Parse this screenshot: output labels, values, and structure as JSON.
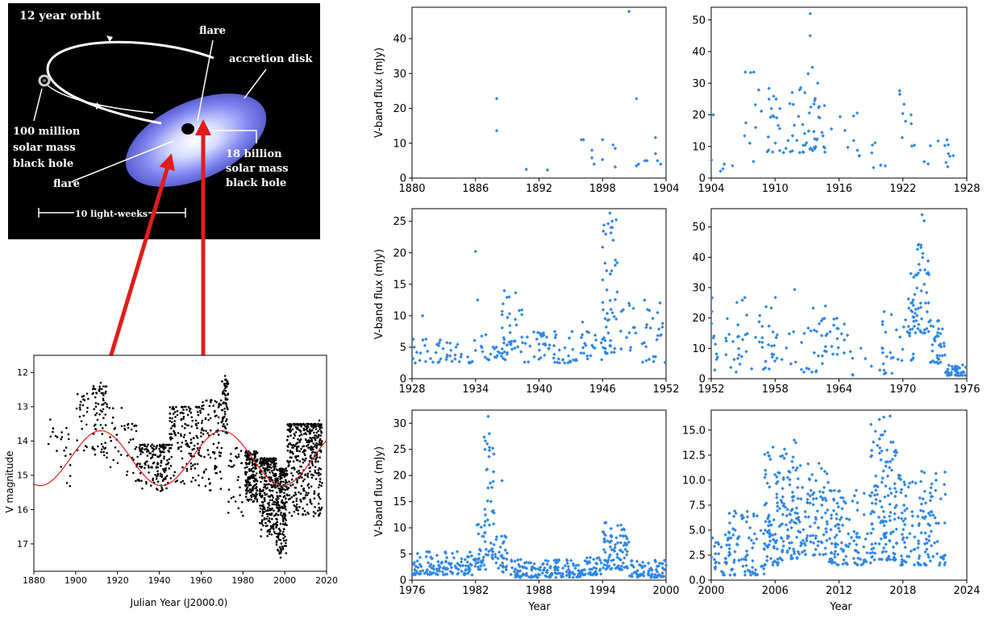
{
  "illustration": {
    "orbit_label": "12 year orbit",
    "flare_top": "flare",
    "accretion_label": "accretion disk",
    "small_bh": [
      "100 million",
      "solar mass",
      "black hole"
    ],
    "flare_left": "flare",
    "big_bh": [
      "18 billion",
      "solar mass",
      "black hole"
    ],
    "scale_label": "10 light-weeks"
  },
  "chart_data": [
    {
      "id": "historical",
      "type": "scatter",
      "xlabel": "Julian Year (J2000.0)",
      "ylabel": "V magnitude",
      "xlim": [
        1880,
        2020
      ],
      "ylim": [
        17.8,
        11.5
      ],
      "xticks": [
        1880,
        1900,
        1920,
        1940,
        1960,
        1980,
        2000,
        2020
      ],
      "yticks": [
        12,
        13,
        14,
        15,
        16,
        17
      ],
      "model_curve": {
        "mean": 14.5,
        "amplitude": 0.8,
        "period": 58,
        "peak_year": 1912
      },
      "seg": [
        [
          1887,
          1890,
          13.3,
          14.2,
          6
        ],
        [
          1890,
          1898,
          13.6,
          15.6,
          18
        ],
        [
          1900,
          1906,
          12.6,
          14.5,
          25
        ],
        [
          1908,
          1915,
          12.4,
          14.5,
          70
        ],
        [
          1915,
          1922,
          13.0,
          15.0,
          18
        ],
        [
          1922,
          1930,
          13.5,
          15.2,
          30
        ],
        [
          1930,
          1945,
          14.1,
          15.5,
          160
        ],
        [
          1945,
          1960,
          13.0,
          15.3,
          150
        ],
        [
          1960,
          1970,
          12.8,
          15.5,
          90
        ],
        [
          1970,
          1973,
          12.2,
          13.8,
          60
        ],
        [
          1973,
          1980,
          14.2,
          16.2,
          30
        ],
        [
          1981,
          1987,
          14.3,
          15.8,
          180
        ],
        [
          1988,
          1996,
          14.5,
          16.8,
          280
        ],
        [
          1996,
          2001,
          14.8,
          17.3,
          200
        ],
        [
          2001,
          2018,
          13.5,
          16.2,
          420
        ]
      ],
      "spikes": [
        [
          1912,
          12.3
        ],
        [
          1913,
          12.6
        ],
        [
          1971.5,
          12.1
        ],
        [
          1972,
          12.4
        ],
        [
          1998,
          17.4
        ],
        [
          1997,
          17.2
        ],
        [
          2016.5,
          13.4
        ],
        [
          2017,
          13.6
        ]
      ]
    },
    {
      "id": "p1",
      "type": "scatter",
      "xlim": [
        1880,
        1904
      ],
      "ylim": [
        0,
        49
      ],
      "xticks": [
        1880,
        1886,
        1892,
        1898,
        1904
      ],
      "yticks": [
        0,
        10,
        20,
        30,
        40
      ],
      "ylabel": "V-band flux (mJy)",
      "points": [
        [
          1888,
          22.8
        ],
        [
          1888,
          13.6
        ],
        [
          1890.8,
          2.5
        ],
        [
          1892.8,
          2.3
        ],
        [
          1896,
          11
        ],
        [
          1896.2,
          11
        ],
        [
          1897,
          8
        ],
        [
          1897,
          5.8
        ],
        [
          1897.2,
          4
        ],
        [
          1898,
          11
        ],
        [
          1898,
          5.3
        ],
        [
          1899,
          9.5
        ],
        [
          1899.2,
          8.5
        ],
        [
          1899.2,
          3.2
        ],
        [
          1900.5,
          47.8
        ],
        [
          1901.2,
          22.8
        ],
        [
          1901.2,
          3.5
        ],
        [
          1901.4,
          4
        ],
        [
          1902,
          5
        ],
        [
          1902.2,
          5
        ],
        [
          1903,
          11.6
        ],
        [
          1903,
          7
        ],
        [
          1903.2,
          5
        ],
        [
          1903.5,
          4
        ]
      ]
    },
    {
      "id": "p2",
      "type": "scatter",
      "xlim": [
        1904,
        1928
      ],
      "ylim": [
        0,
        54
      ],
      "xticks": [
        1904,
        1910,
        1916,
        1922,
        1928
      ],
      "yticks": [
        0,
        10,
        20,
        30,
        40,
        50
      ],
      "seg": [
        [
          1904,
          1906,
          2,
          6,
          5
        ],
        [
          1907,
          1909,
          5,
          34,
          9
        ],
        [
          1909,
          1913,
          8,
          29,
          40
        ],
        [
          1913,
          1915,
          8,
          26,
          28
        ],
        [
          1915,
          1918,
          7,
          21,
          10
        ],
        [
          1919,
          1921,
          3,
          12,
          6
        ],
        [
          1921.5,
          1923.5,
          10,
          33,
          10
        ],
        [
          1924,
          1927.5,
          3,
          17,
          12
        ]
      ],
      "spikes": [
        [
          1904.2,
          20
        ],
        [
          1913.3,
          52
        ],
        [
          1913.3,
          45
        ],
        [
          1913.5,
          35
        ],
        [
          1914,
          30
        ],
        [
          1912.8,
          27
        ],
        [
          1913.1,
          33
        ],
        [
          1908,
          33.5
        ],
        [
          1907.2,
          33.5
        ]
      ]
    },
    {
      "id": "p3",
      "type": "scatter",
      "xlim": [
        1928,
        1952
      ],
      "ylim": [
        0,
        27
      ],
      "xticks": [
        1928,
        1934,
        1940,
        1946,
        1952
      ],
      "yticks": [
        0,
        5,
        10,
        15,
        20,
        25
      ],
      "ylabel": "V-band flux (mJy)",
      "seg": [
        [
          1928,
          1934,
          2.5,
          6.5,
          45
        ],
        [
          1934,
          1937,
          3,
          7,
          25
        ],
        [
          1936.5,
          1938.5,
          4,
          14,
          35
        ],
        [
          1938.5,
          1944,
          2.5,
          7.5,
          55
        ],
        [
          1944,
          1946,
          3,
          9,
          20
        ],
        [
          1946,
          1947.5,
          4,
          26,
          45
        ],
        [
          1947.5,
          1952,
          2.5,
          13,
          40
        ]
      ],
      "spikes": [
        [
          1928.2,
          5
        ],
        [
          1929,
          10
        ],
        [
          1934,
          20.2
        ],
        [
          1934.2,
          12.5
        ],
        [
          1946.7,
          26.3
        ],
        [
          1946.9,
          25
        ],
        [
          1946.8,
          24
        ],
        [
          1947,
          22
        ],
        [
          1947.2,
          18
        ]
      ]
    },
    {
      "id": "p4",
      "type": "scatter",
      "xlim": [
        1952,
        1976
      ],
      "ylim": [
        0,
        56
      ],
      "xticks": [
        1952,
        1958,
        1964,
        1970,
        1976
      ],
      "yticks": [
        0,
        10,
        20,
        30,
        40,
        50
      ],
      "seg": [
        [
          1952,
          1955,
          2,
          27,
          30
        ],
        [
          1955,
          1960,
          3,
          30,
          40
        ],
        [
          1960,
          1963,
          2,
          24,
          20
        ],
        [
          1962,
          1965,
          8,
          20,
          25
        ],
        [
          1965,
          1969,
          1,
          10,
          15
        ],
        [
          1968,
          1971,
          6,
          24,
          25
        ],
        [
          1970.5,
          1972.5,
          15,
          45,
          60
        ],
        [
          1972.5,
          1974,
          5,
          20,
          35
        ],
        [
          1974,
          1976,
          1,
          5,
          40
        ]
      ],
      "spikes": [
        [
          1971.8,
          54
        ],
        [
          1972,
          52
        ],
        [
          1971.7,
          44
        ]
      ]
    },
    {
      "id": "p5",
      "type": "scatter",
      "xlim": [
        1976,
        2000
      ],
      "ylim": [
        0,
        32.5
      ],
      "xticks": [
        1976,
        1982,
        1988,
        1994,
        2000
      ],
      "yticks": [
        0,
        5,
        10,
        15,
        20,
        25,
        30
      ],
      "ylabel": "V-band flux (mJy)",
      "xlabel": "Year",
      "seg": [
        [
          1976,
          1982,
          1,
          5.5,
          120
        ],
        [
          1982,
          1983,
          2,
          12,
          30
        ],
        [
          1982.8,
          1983.8,
          4,
          28,
          40
        ],
        [
          1983.8,
          1985,
          1.5,
          9,
          30
        ],
        [
          1985,
          1992,
          0.5,
          4,
          140
        ],
        [
          1992,
          1994,
          1,
          4.5,
          40
        ],
        [
          1994,
          1996.5,
          2,
          11,
          90
        ],
        [
          1996.5,
          2000,
          0.5,
          4,
          70
        ]
      ],
      "spikes": [
        [
          1983.2,
          31.3
        ],
        [
          1983.3,
          28
        ],
        [
          1984.5,
          19
        ]
      ]
    },
    {
      "id": "p6",
      "type": "scatter",
      "xlim": [
        2000,
        2024
      ],
      "ylim": [
        0,
        17
      ],
      "xticks": [
        2000,
        2006,
        2012,
        2018,
        2024
      ],
      "yticks": [
        0.0,
        2.5,
        5.0,
        7.5,
        10.0,
        12.5,
        15.0
      ],
      "xlabel": "Year",
      "seg": [
        [
          2000,
          2005,
          0.5,
          7,
          110
        ],
        [
          2005,
          2006.5,
          1.5,
          13,
          70
        ],
        [
          2006.5,
          2008.5,
          2,
          14,
          90
        ],
        [
          2008.5,
          2011,
          2.5,
          12,
          80
        ],
        [
          2011,
          2015,
          1.5,
          9,
          110
        ],
        [
          2015,
          2017.5,
          2,
          16.5,
          130
        ],
        [
          2017.5,
          2022,
          1.5,
          11,
          130
        ]
      ],
      "spikes": [
        [
          2016.2,
          16.3
        ],
        [
          2016.8,
          16.4
        ],
        [
          2007.8,
          14
        ],
        [
          2005.8,
          13.3
        ]
      ]
    }
  ]
}
